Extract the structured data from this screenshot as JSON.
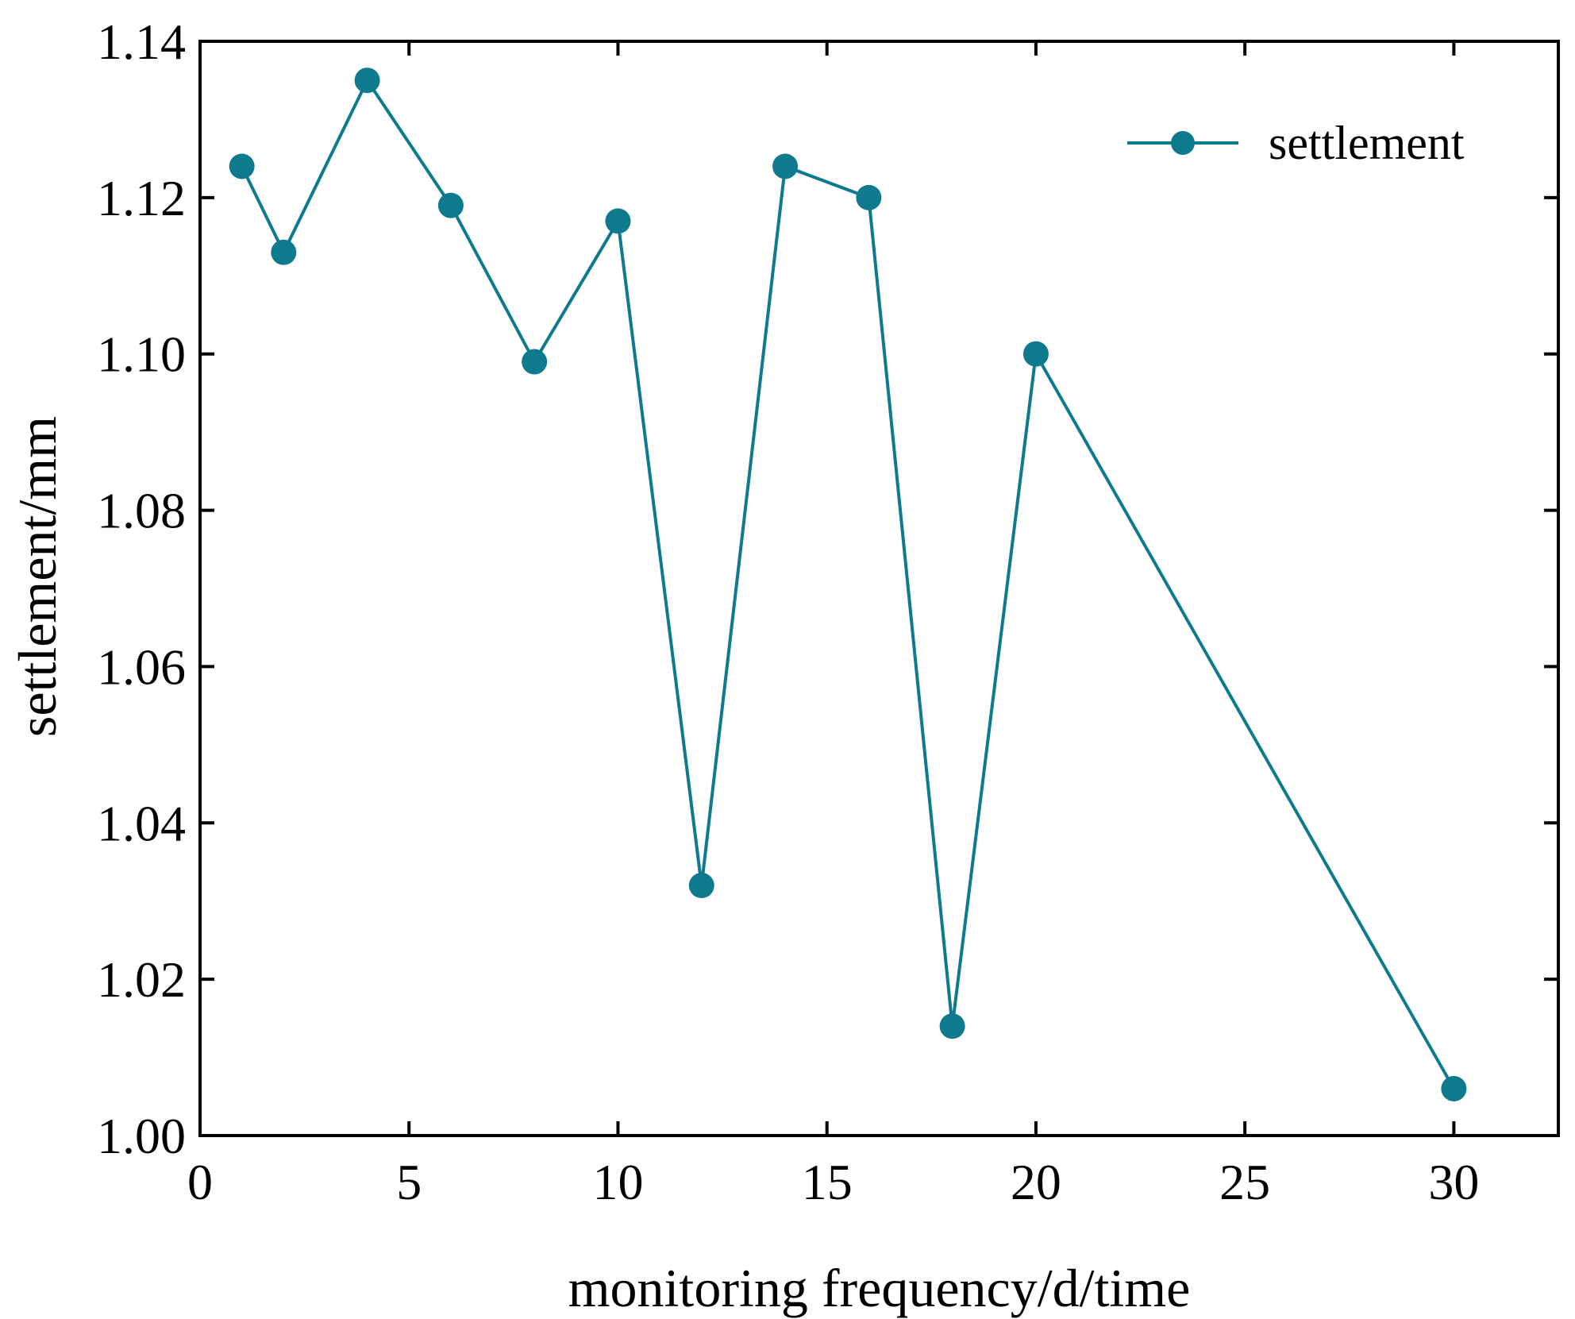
{
  "chart_data": {
    "type": "line",
    "title": "",
    "xlabel": "monitoring frequency/d/time",
    "ylabel": "settlement/mm",
    "xlim": [
      0,
      32.5
    ],
    "ylim": [
      1.0,
      1.14
    ],
    "x_ticks": [
      0,
      5,
      10,
      15,
      20,
      25,
      30
    ],
    "x_tick_labels": [
      "0",
      "5",
      "10",
      "15",
      "20",
      "25",
      "30"
    ],
    "y_ticks": [
      1.0,
      1.02,
      1.04,
      1.06,
      1.08,
      1.1,
      1.12,
      1.14
    ],
    "y_tick_labels": [
      "1.00",
      "1.02",
      "1.04",
      "1.06",
      "1.08",
      "1.10",
      "1.12",
      "1.14"
    ],
    "grid": false,
    "legend_position": "top-right",
    "series": [
      {
        "name": "settlement",
        "color": "#0e7a8e",
        "marker": "circle",
        "x": [
          1,
          2,
          4,
          6,
          8,
          10,
          12,
          14,
          16,
          18,
          20,
          30
        ],
        "y": [
          1.124,
          1.113,
          1.135,
          1.119,
          1.099,
          1.117,
          1.032,
          1.124,
          1.12,
          1.014,
          1.1,
          1.006
        ]
      }
    ]
  }
}
